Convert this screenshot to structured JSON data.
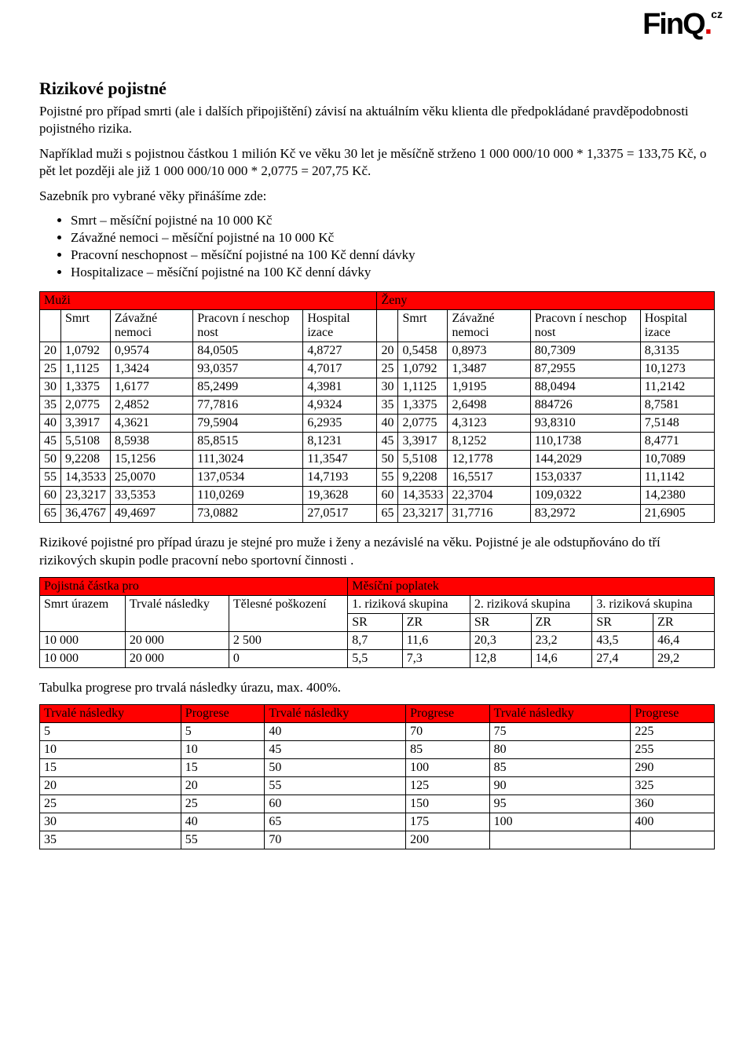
{
  "logo": {
    "text_a": "Fin",
    "text_b": "Q",
    "dot": ".",
    "tld": "cz"
  },
  "title": "Rizikové pojistné",
  "p1": "Pojistné pro případ smrti (ale i dalších připojištění) závisí na aktuálním věku klienta dle předpokládané pravděpodobnosti pojistného rizika.",
  "p2": "Například muži s pojistnou částkou 1 milión Kč ve věku 30 let je měsíčně strženo 1 000 000/10 000 * 1,3375 =  133,75 Kč, o pět let později ale již 1 000 000/10 000 * 2,0775 =  207,75 Kč.",
  "p3": "Sazebník pro vybrané věky přinášíme zde:",
  "bullets": [
    "Smrt – měsíční pojistné na 10 000 Kč",
    "Závažné nemoci – měsíční pojistné na 10 000 Kč",
    "Pracovní neschopnost – měsíční pojistné na 100 Kč denní dávky",
    "Hospitalizace – měsíční pojistné na 100 Kč denní dávky"
  ],
  "t1": {
    "muzi": "Muži",
    "zeny": "Ženy",
    "cols": [
      "",
      "Smrt",
      "Závažné nemoci",
      "Pracovn í neschop nost",
      "Hospital izace"
    ],
    "rows": [
      [
        "20",
        "1,0792",
        "0,9574",
        "84,0505",
        "4,8727",
        "20",
        "0,5458",
        "0,8973",
        "80,7309",
        "8,3135"
      ],
      [
        "25",
        "1,1125",
        "1,3424",
        "93,0357",
        "4,7017",
        "25",
        "1,0792",
        "1,3487",
        "87,2955",
        "10,1273"
      ],
      [
        "30",
        "1,3375",
        "1,6177",
        "85,2499",
        "4,3981",
        "30",
        "1,1125",
        "1,9195",
        "88,0494",
        "11,2142"
      ],
      [
        "35",
        "2,0775",
        "2,4852",
        "77,7816",
        "4,9324",
        "35",
        "1,3375",
        "2,6498",
        "884726",
        "8,7581"
      ],
      [
        "40",
        "3,3917",
        "4,3621",
        "79,5904",
        "6,2935",
        "40",
        "2,0775",
        "4,3123",
        "93,8310",
        "7,5148"
      ],
      [
        "45",
        "5,5108",
        "8,5938",
        "85,8515",
        "8,1231",
        "45",
        "3,3917",
        "8,1252",
        "110,1738",
        "8,4771"
      ],
      [
        "50",
        "9,2208",
        "15,1256",
        "111,3024",
        "11,3547",
        "50",
        "5,5108",
        "12,1778",
        "144,2029",
        "10,7089"
      ],
      [
        "55",
        "14,3533",
        "25,0070",
        "137,0534",
        "14,7193",
        "55",
        "9,2208",
        "16,5517",
        "153,0337",
        "11,1142"
      ],
      [
        "60",
        "23,3217",
        "33,5353",
        "110,0269",
        "19,3628",
        "60",
        "14,3533",
        "22,3704",
        "109,0322",
        "14,2380"
      ],
      [
        "65",
        "36,4767",
        "49,4697",
        "73,0882",
        "27,0517",
        "65",
        "23,3217",
        "31,7716",
        "83,2972",
        "21,6905"
      ]
    ]
  },
  "p4": "Rizikové pojistné pro případ úrazu je stejné pro muže i ženy a nezávislé na věku. Pojistné je ale odstupňováno do tří rizikových skupin podle pracovní nebo sportovní činnosti .",
  "t2": {
    "h1a": "Pojistná částka pro",
    "h1b": "Měsíční poplatek",
    "h2": [
      "Smrt úrazem",
      "Trvalé následky",
      "Tělesné poškození",
      "1. riziková skupina",
      "2. riziková skupina",
      "3. riziková skupina"
    ],
    "h3": [
      "SR",
      "ZR",
      "SR",
      "ZR",
      "SR",
      "ZR"
    ],
    "rows": [
      [
        "10 000",
        "20 000",
        "2 500",
        "8,7",
        "11,6",
        "20,3",
        "23,2",
        "43,5",
        "46,4"
      ],
      [
        "10 000",
        "20 000",
        "0",
        "5,5",
        "7,3",
        "12,8",
        "14,6",
        "27,4",
        "29,2"
      ]
    ]
  },
  "p5": "Tabulka progrese pro trvalá následky úrazu, max. 400%.",
  "t3": {
    "hdr": [
      "Trvalé následky",
      "Progrese",
      "Trvalé následky",
      "Progrese",
      "Trvalé následky",
      "Progrese"
    ],
    "rows": [
      [
        "5",
        "5",
        "40",
        "70",
        "75",
        "225"
      ],
      [
        "10",
        "10",
        "45",
        "85",
        "80",
        "255"
      ],
      [
        "15",
        "15",
        "50",
        "100",
        "85",
        "290"
      ],
      [
        "20",
        "20",
        "55",
        "125",
        "90",
        "325"
      ],
      [
        "25",
        "25",
        "60",
        "150",
        "95",
        "360"
      ],
      [
        "30",
        "40",
        "65",
        "175",
        "100",
        "400"
      ],
      [
        "35",
        "55",
        "70",
        "200",
        "",
        ""
      ]
    ]
  }
}
